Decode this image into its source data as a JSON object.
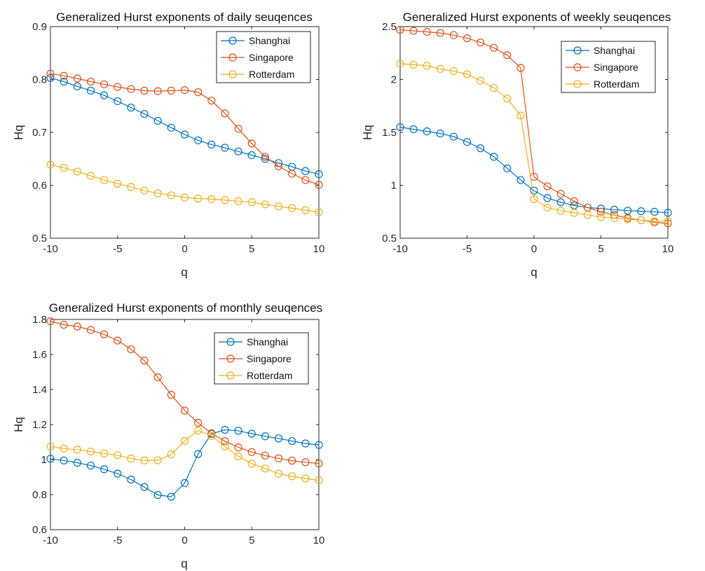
{
  "colors": {
    "Shanghai": "#0072BD",
    "Singapore": "#D95319",
    "Rotterdam": "#EDB120",
    "axis": "#262626"
  },
  "chart_data": [
    {
      "type": "line",
      "title": "Generalized Hurst exponents of daily seuqences",
      "xlabel": "q",
      "ylabel": "Hq",
      "xlim": [
        -10,
        10
      ],
      "ylim": [
        0.5,
        0.9
      ],
      "xticks": [
        -10,
        -5,
        0,
        5,
        10
      ],
      "yticks": [
        0.5,
        0.6,
        0.7,
        0.8,
        0.9
      ],
      "xtick_labels": [
        "-10",
        "-5",
        "0",
        "5",
        "10"
      ],
      "ytick_labels": [
        "0.5",
        "0.6",
        "0.7",
        "0.8",
        "0.9"
      ],
      "legend_position": "top-right",
      "marker": "circle",
      "x": [
        -10,
        -9,
        -8,
        -7,
        -6,
        -5,
        -4,
        -3,
        -2,
        -1,
        0,
        1,
        2,
        3,
        4,
        5,
        6,
        7,
        8,
        9,
        10
      ],
      "series": [
        {
          "name": "Shanghai",
          "values": [
            0.803,
            0.796,
            0.787,
            0.779,
            0.77,
            0.759,
            0.747,
            0.735,
            0.722,
            0.709,
            0.696,
            0.685,
            0.677,
            0.671,
            0.664,
            0.657,
            0.65,
            0.642,
            0.635,
            0.627,
            0.621
          ]
        },
        {
          "name": "Singapore",
          "values": [
            0.811,
            0.807,
            0.802,
            0.796,
            0.791,
            0.786,
            0.782,
            0.779,
            0.778,
            0.779,
            0.78,
            0.776,
            0.76,
            0.736,
            0.707,
            0.679,
            0.654,
            0.636,
            0.622,
            0.61,
            0.601
          ]
        },
        {
          "name": "Rotterdam",
          "values": [
            0.639,
            0.633,
            0.626,
            0.618,
            0.61,
            0.603,
            0.597,
            0.59,
            0.585,
            0.581,
            0.577,
            0.575,
            0.574,
            0.572,
            0.57,
            0.568,
            0.564,
            0.56,
            0.557,
            0.553,
            0.549
          ]
        }
      ]
    },
    {
      "type": "line",
      "title": "Generalized Hurst exponents of weekly seuqences",
      "xlabel": "q",
      "ylabel": "Hq",
      "xlim": [
        -10,
        10
      ],
      "ylim": [
        0.5,
        2.5
      ],
      "xticks": [
        -10,
        -5,
        0,
        5,
        10
      ],
      "yticks": [
        0.5,
        1,
        1.5,
        2,
        2.5
      ],
      "xtick_labels": [
        "-10",
        "-5",
        "0",
        "5",
        "10"
      ],
      "ytick_labels": [
        "0.5",
        "1",
        "1.5",
        "2",
        "2.5"
      ],
      "legend_position": "top-right",
      "marker": "circle",
      "x": [
        -10,
        -9,
        -8,
        -7,
        -6,
        -5,
        -4,
        -3,
        -2,
        -1,
        0,
        1,
        2,
        3,
        4,
        5,
        6,
        7,
        8,
        9,
        10
      ],
      "series": [
        {
          "name": "Shanghai",
          "values": [
            1.55,
            1.53,
            1.51,
            1.49,
            1.46,
            1.41,
            1.35,
            1.27,
            1.16,
            1.05,
            0.95,
            0.88,
            0.84,
            0.81,
            0.79,
            0.78,
            0.77,
            0.76,
            0.755,
            0.75,
            0.74
          ]
        },
        {
          "name": "Singapore",
          "values": [
            2.47,
            2.46,
            2.45,
            2.44,
            2.42,
            2.39,
            2.35,
            2.3,
            2.23,
            2.11,
            1.08,
            0.99,
            0.92,
            0.85,
            0.79,
            0.75,
            0.72,
            0.69,
            0.67,
            0.65,
            0.64
          ]
        },
        {
          "name": "Rotterdam",
          "values": [
            2.15,
            2.14,
            2.13,
            2.1,
            2.08,
            2.05,
            1.99,
            1.92,
            1.82,
            1.66,
            0.87,
            0.79,
            0.76,
            0.74,
            0.72,
            0.7,
            0.69,
            0.68,
            0.67,
            0.66,
            0.66
          ]
        }
      ]
    },
    {
      "type": "line",
      "title": "Generalized Hurst exponents of monthly seuqences",
      "xlabel": "q",
      "ylabel": "Hq",
      "xlim": [
        -10,
        10
      ],
      "ylim": [
        0.6,
        1.8
      ],
      "xticks": [
        -10,
        -5,
        0,
        5,
        10
      ],
      "yticks": [
        0.6,
        0.8,
        1,
        1.2,
        1.4,
        1.6,
        1.8
      ],
      "xtick_labels": [
        "-10",
        "-5",
        "0",
        "5",
        "10"
      ],
      "ytick_labels": [
        "0.6",
        "0.8",
        "1",
        "1.2",
        "1.4",
        "1.6",
        "1.8"
      ],
      "legend_position": "top-right",
      "marker": "circle",
      "x": [
        -10,
        -9,
        -8,
        -7,
        -6,
        -5,
        -4,
        -3,
        -2,
        -1,
        0,
        1,
        2,
        3,
        4,
        5,
        6,
        7,
        8,
        9,
        10
      ],
      "series": [
        {
          "name": "Shanghai",
          "values": [
            1.005,
            0.995,
            0.982,
            0.966,
            0.945,
            0.92,
            0.886,
            0.843,
            0.798,
            0.788,
            0.866,
            1.032,
            1.147,
            1.17,
            1.165,
            1.148,
            1.133,
            1.121,
            1.106,
            1.092,
            1.084
          ]
        },
        {
          "name": "Singapore",
          "values": [
            1.79,
            1.77,
            1.76,
            1.74,
            1.715,
            1.68,
            1.63,
            1.565,
            1.47,
            1.37,
            1.28,
            1.21,
            1.15,
            1.105,
            1.07,
            1.043,
            1.023,
            1.007,
            0.994,
            0.985,
            0.978
          ]
        },
        {
          "name": "Rotterdam",
          "values": [
            1.075,
            1.063,
            1.057,
            1.046,
            1.035,
            1.025,
            1.006,
            0.995,
            0.996,
            1.03,
            1.107,
            1.166,
            1.135,
            1.075,
            1.019,
            0.977,
            0.949,
            0.92,
            0.905,
            0.892,
            0.882
          ]
        }
      ]
    }
  ]
}
